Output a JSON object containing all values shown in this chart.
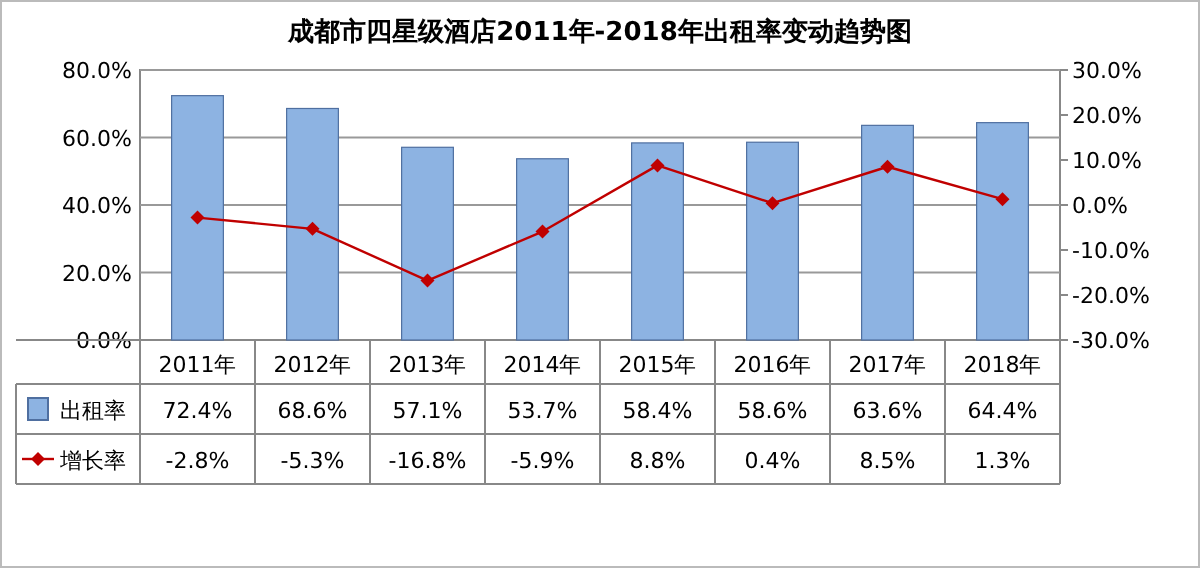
{
  "chart_data": {
    "type": "bar",
    "title": "成都市四星级酒店2011年-2018年出租率变动趋势图",
    "categories": [
      "2011年",
      "2012年",
      "2013年",
      "2014年",
      "2015年",
      "2016年",
      "2017年",
      "2018年"
    ],
    "series": [
      {
        "name": "出租率",
        "color": "#8db3e2",
        "values": [
          72.4,
          68.6,
          57.1,
          53.7,
          58.4,
          58.6,
          63.6,
          64.4
        ],
        "value_labels": [
          "72.4%",
          "68.6%",
          "57.1%",
          "53.7%",
          "58.4%",
          "58.6%",
          "63.6%",
          "64.4%"
        ]
      },
      {
        "name": "增长率",
        "type": "line",
        "axis": "y2",
        "marker": "diamond",
        "color": "#c00000",
        "values": [
          -2.8,
          -5.3,
          -16.8,
          -5.9,
          8.8,
          0.4,
          8.5,
          1.3
        ],
        "value_labels": [
          "-2.8%",
          "-5.3%",
          "-16.8%",
          "-5.9%",
          "8.8%",
          "0.4%",
          "8.5%",
          "1.3%"
        ]
      }
    ],
    "ylim": [
      0,
      80
    ],
    "yticks": [
      {
        "value": 0,
        "label": "0.0%"
      },
      {
        "value": 20,
        "label": "20.0%"
      },
      {
        "value": 40,
        "label": "40.0%"
      },
      {
        "value": 60,
        "label": "60.0%"
      },
      {
        "value": 80,
        "label": "80.0%"
      }
    ],
    "y2lim": [
      -30,
      30
    ],
    "y2ticks": [
      {
        "value": -30,
        "label": "-30.0%"
      },
      {
        "value": -20,
        "label": "-20.0%"
      },
      {
        "value": -10,
        "label": "-10.0%"
      },
      {
        "value": 0,
        "label": "0.0%"
      },
      {
        "value": 10,
        "label": "10.0%"
      },
      {
        "value": 20,
        "label": "20.0%"
      },
      {
        "value": 30,
        "label": "30.0%"
      }
    ],
    "grid": "y",
    "legend": "bottom"
  }
}
